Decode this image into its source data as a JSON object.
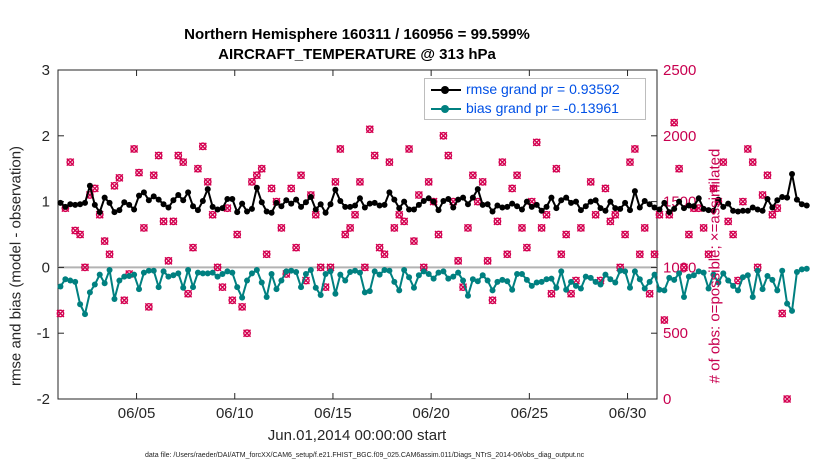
{
  "chart_data": {
    "type": "line",
    "title": "Northern Hemisphere 160311 / 160956 = 99.599%",
    "subtitle": "AIRCRAFT_TEMPERATURE @ 313 hPa",
    "xlabel": "Jun.01,2014 00:00:00 start",
    "ylabel": "rmse and bias (model - observation)",
    "ylabel_right": "# of obs: o=possible; ×=assimilated",
    "xlim": [
      1,
      31.5
    ],
    "ylim": [
      -2,
      3
    ],
    "ylim_right": [
      0,
      2500
    ],
    "x_ticks": [
      5,
      10,
      15,
      20,
      25,
      30
    ],
    "x_tick_labels": [
      "06/05",
      "06/10",
      "06/15",
      "06/20",
      "06/25",
      "06/30"
    ],
    "y_ticks": [
      -2,
      -1,
      0,
      1,
      2,
      3
    ],
    "y_ticks_right": [
      0,
      500,
      1000,
      1500,
      2000,
      2500
    ],
    "grid": false,
    "legend_position": "top-right",
    "colors": {
      "rmse": "#000000",
      "bias": "#008080",
      "obs": "#d40050",
      "zero_line": "#b3b3b3"
    },
    "legend": [
      {
        "label": "rmse grand pr = 0.93592",
        "series": "rmse"
      },
      {
        "label": "bias grand pr = -0.13961",
        "series": "bias"
      }
    ],
    "series": [
      {
        "name": "rmse",
        "axis": "left",
        "x_start": 1.125,
        "x_step": 0.25,
        "values": [
          0.98,
          0.92,
          0.96,
          0.95,
          0.96,
          0.98,
          1.24,
          0.95,
          0.84,
          1.06,
          0.98,
          0.84,
          0.87,
          0.99,
          0.95,
          0.88,
          1.09,
          1.14,
          1.02,
          1.08,
          1.03,
          0.96,
          0.91,
          1.02,
          1.1,
          1.02,
          1.14,
          0.93,
          0.87,
          1.01,
          1.19,
          0.92,
          0.88,
          0.9,
          1.04,
          1.04,
          0.84,
          0.97,
          0.85,
          0.89,
          1.21,
          0.99,
          0.85,
          0.83,
          0.98,
          0.93,
          1.02,
          0.97,
          1.03,
          0.92,
          0.99,
          1.07,
          0.88,
          0.96,
          0.83,
          0.96,
          1.18,
          1.01,
          0.92,
          0.92,
          0.94,
          1.05,
          0.91,
          0.97,
          0.98,
          0.94,
          0.95,
          1.14,
          1.03,
          0.9,
          1.0,
          0.88,
          0.88,
          0.95,
          1.01,
          1.05,
          1.0,
          0.87,
          1.01,
          1.04,
          0.91,
          1.03,
          1.06,
          0.96,
          1.06,
          1.19,
          0.95,
          0.96,
          0.85,
          0.94,
          0.91,
          0.92,
          0.97,
          0.93,
          0.88,
          1.0,
          0.92,
          0.95,
          0.86,
          0.92,
          1.06,
          0.9,
          1.02,
          1.06,
          0.98,
          1.0,
          0.87,
          0.93,
          1.0,
          1.02,
          0.9,
          0.86,
          1.0,
          0.9,
          0.89,
          0.98,
          0.87,
          1.16,
          0.91,
          1.01,
          0.96,
          0.91,
          0.88,
          0.98,
          0.84,
          0.89,
          1.0,
          0.9,
          0.94,
          0.93,
          1.05,
          0.89,
          0.87,
          0.86,
          1.03,
          0.92,
          0.97,
          0.86,
          0.85,
          0.86,
          0.86,
          0.91,
          0.88,
          0.86,
          1.04,
          0.91,
          1.02,
          1.07,
          1.06,
          1.42,
          1.03,
          0.96,
          0.94
        ]
      },
      {
        "name": "bias",
        "axis": "left",
        "x_start": 1.125,
        "x_step": 0.25,
        "values": [
          -0.29,
          -0.18,
          -0.2,
          -0.22,
          -0.56,
          -0.71,
          -0.38,
          -0.26,
          -0.11,
          -0.24,
          -0.04,
          -0.48,
          -0.2,
          -0.14,
          -0.13,
          -0.11,
          -0.33,
          -0.08,
          -0.05,
          -0.05,
          -0.3,
          -0.06,
          -0.14,
          -0.12,
          -0.09,
          -0.31,
          -0.04,
          -0.3,
          -0.08,
          -0.09,
          -0.09,
          -0.08,
          -0.14,
          -0.1,
          -0.06,
          -0.08,
          -0.3,
          -0.46,
          -0.2,
          -0.09,
          -0.04,
          -0.23,
          -0.45,
          -0.1,
          -0.33,
          -0.2,
          -0.06,
          -0.05,
          -0.07,
          -0.3,
          -0.1,
          -0.04,
          -0.31,
          -0.42,
          -0.1,
          -0.06,
          -0.4,
          -0.11,
          -0.2,
          -0.07,
          -0.05,
          -0.08,
          -0.38,
          -0.36,
          -0.06,
          -0.11,
          -0.04,
          -0.05,
          -0.22,
          -0.35,
          -0.04,
          -0.15,
          -0.31,
          -0.12,
          -0.06,
          -0.1,
          -0.17,
          -0.08,
          -0.06,
          -0.17,
          -0.14,
          -0.08,
          -0.2,
          -0.43,
          -0.18,
          -0.21,
          -0.12,
          -0.2,
          -0.35,
          -0.22,
          -0.19,
          -0.21,
          -0.34,
          -0.1,
          -0.1,
          -0.19,
          -0.28,
          -0.23,
          -0.22,
          -0.18,
          -0.17,
          -0.31,
          -0.06,
          -0.34,
          -0.22,
          -0.28,
          -0.32,
          -0.14,
          -0.16,
          -0.22,
          -0.26,
          -0.11,
          -0.18,
          -0.23,
          -0.05,
          -0.06,
          -0.31,
          -0.06,
          -0.18,
          -0.32,
          -0.22,
          -0.11,
          -0.34,
          -0.35,
          -0.16,
          -0.19,
          -0.09,
          -0.45,
          -0.14,
          -0.12,
          -0.06,
          -0.08,
          -0.32,
          -0.11,
          -0.23,
          -0.09,
          -0.2,
          -0.28,
          -0.35,
          -0.15,
          -0.12,
          -0.45,
          -0.05,
          -0.33,
          -0.13,
          -0.19,
          -0.35,
          -0.05,
          -0.55,
          -0.66,
          -0.07,
          -0.03,
          -0.02
        ]
      },
      {
        "name": "obs_possible",
        "axis": "right",
        "marker": "o",
        "x_start": 1.125,
        "x_step": 0.25,
        "values": [
          650,
          1450,
          1800,
          1280,
          1250,
          1000,
          1550,
          1600,
          1400,
          1200,
          1100,
          1620,
          1680,
          750,
          950,
          1900,
          1720,
          1300,
          700,
          1700,
          1850,
          1350,
          1050,
          1350,
          1850,
          1800,
          800,
          1150,
          1750,
          1920,
          1650,
          1400,
          1000,
          850,
          1450,
          750,
          1250,
          700,
          500,
          1650,
          1700,
          1750,
          1100,
          1600,
          1500,
          1300,
          950,
          1600,
          1150,
          1700,
          900,
          1550,
          1400,
          1000,
          850,
          1000,
          1650,
          1900,
          1250,
          1300,
          1400,
          1650,
          1000,
          2050,
          1850,
          1150,
          1100,
          1800,
          1300,
          1400,
          1350,
          1900,
          1200,
          1550,
          1000,
          1650,
          1500,
          1250,
          2000,
          1850,
          1500,
          1050,
          850,
          1300,
          1700,
          1500,
          1650,
          1050,
          750,
          1350,
          1800,
          1100,
          1600,
          1700,
          1300,
          1150,
          1500,
          1950,
          1300,
          1400,
          800,
          1750,
          1100,
          1250,
          800,
          900,
          1300,
          2150,
          1650,
          1400,
          900,
          1600,
          1350,
          1400,
          1000,
          1250,
          1800,
          1900,
          1100,
          1300,
          800,
          1100,
          1400,
          600,
          1400,
          2100,
          1750,
          1000,
          1250,
          1450,
          1450,
          1300,
          1100,
          1600,
          1500,
          1800,
          1350,
          1250,
          900,
          1500,
          1900,
          1800,
          1000,
          1550,
          1700,
          1400,
          1450,
          650,
          0
        ]
      }
    ]
  },
  "footer": {
    "data_file": "data file: /Users/raeder/DAI/ATM_forcXX/CAM6_setup/f.e21.FHIST_BGC.f09_025.CAM6assim.011/Diags_NTrS_2014-06/obs_diag_output.nc"
  }
}
